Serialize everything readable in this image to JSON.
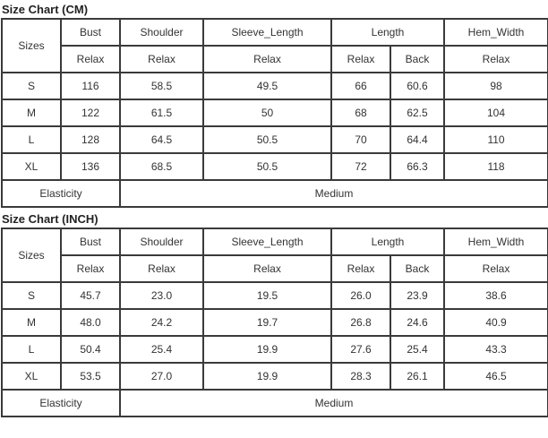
{
  "tables": [
    {
      "title": "Size Chart (CM)",
      "header": {
        "sizes": "Sizes",
        "columns": [
          "Bust",
          "Shoulder",
          "Sleeve_Length",
          "Length",
          "Hem_Width"
        ],
        "sub": [
          "Relax",
          "Relax",
          "Relax",
          "Relax",
          "Back",
          "Relax"
        ]
      },
      "rows": [
        [
          "S",
          "116",
          "58.5",
          "49.5",
          "66",
          "60.6",
          "98"
        ],
        [
          "M",
          "122",
          "61.5",
          "50",
          "68",
          "62.5",
          "104"
        ],
        [
          "L",
          "128",
          "64.5",
          "50.5",
          "70",
          "64.4",
          "110"
        ],
        [
          "XL",
          "136",
          "68.5",
          "50.5",
          "72",
          "66.3",
          "118"
        ]
      ],
      "footer": {
        "label": "Elasticity",
        "value": "Medium"
      }
    },
    {
      "title": "Size Chart (INCH)",
      "header": {
        "sizes": "Sizes",
        "columns": [
          "Bust",
          "Shoulder",
          "Sleeve_Length",
          "Length",
          "Hem_Width"
        ],
        "sub": [
          "Relax",
          "Relax",
          "Relax",
          "Relax",
          "Back",
          "Relax"
        ]
      },
      "rows": [
        [
          "S",
          "45.7",
          "23.0",
          "19.5",
          "26.0",
          "23.9",
          "38.6"
        ],
        [
          "M",
          "48.0",
          "24.2",
          "19.7",
          "26.8",
          "24.6",
          "40.9"
        ],
        [
          "L",
          "50.4",
          "25.4",
          "19.9",
          "27.6",
          "25.4",
          "43.3"
        ],
        [
          "XL",
          "53.5",
          "27.0",
          "19.9",
          "28.3",
          "26.1",
          "46.5"
        ]
      ],
      "footer": {
        "label": "Elasticity",
        "value": "Medium"
      }
    }
  ]
}
